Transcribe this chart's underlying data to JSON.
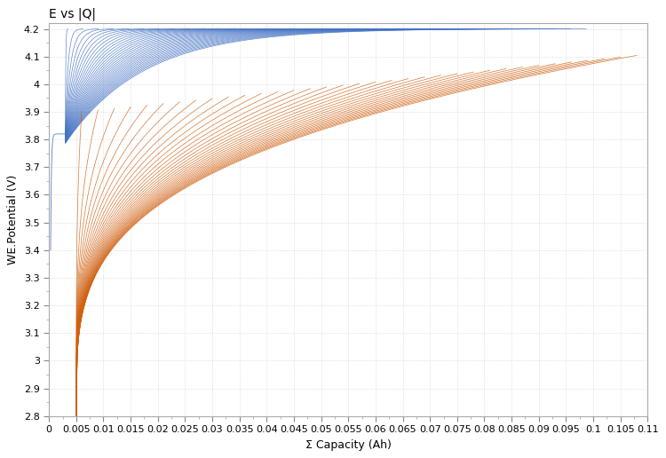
{
  "title": "E vs |Q|",
  "xlabel": "Σ Capacity (Ah)",
  "ylabel": "WE.Potential (V)",
  "xlim": [
    0,
    0.11
  ],
  "ylim": [
    2.8,
    4.22
  ],
  "xticks": [
    0,
    0.005,
    0.01,
    0.015,
    0.02,
    0.025,
    0.03,
    0.035,
    0.04,
    0.045,
    0.05,
    0.055,
    0.06,
    0.065,
    0.07,
    0.075,
    0.08,
    0.085,
    0.09,
    0.095,
    0.1,
    0.105,
    0.11
  ],
  "yticks": [
    2.8,
    2.9,
    3.0,
    3.1,
    3.2,
    3.3,
    3.4,
    3.5,
    3.6,
    3.7,
    3.8,
    3.9,
    4.0,
    4.1,
    4.2
  ],
  "charge_color": "#4472C4",
  "discharge_color": "#D06010",
  "n_cycles": 35,
  "bg_color": "#FFFFFF",
  "grid_color": "#CCCCCC",
  "title_fontsize": 10,
  "label_fontsize": 9,
  "tick_fontsize": 8
}
